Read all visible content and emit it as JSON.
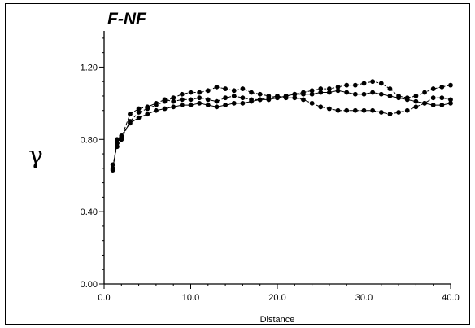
{
  "chart_data": {
    "type": "line",
    "title": "F-NF",
    "xlabel": "Distance",
    "ylabel": "γ",
    "xlim": [
      0,
      40
    ],
    "ylim": [
      0,
      1.4
    ],
    "x_ticks": [
      "0.0",
      "10.0",
      "20.0",
      "30.0",
      "40.0"
    ],
    "y_ticks": [
      "0.00",
      "0.40",
      "0.80",
      "1.20"
    ],
    "grid": false,
    "series": [
      {
        "x": [
          1,
          1.5,
          2,
          3,
          4,
          5,
          6,
          7,
          8,
          9,
          10,
          11,
          12,
          13,
          14,
          15,
          16,
          17,
          18,
          19,
          20,
          21,
          22,
          23,
          24,
          25,
          26,
          27,
          28,
          29,
          30,
          31,
          32,
          33,
          34,
          35,
          36,
          37,
          38,
          39,
          40
        ],
        "y": [
          0.63,
          0.8,
          0.82,
          0.89,
          0.92,
          0.94,
          0.96,
          0.97,
          0.98,
          0.99,
          0.99,
          1.0,
          0.99,
          0.98,
          0.99,
          1.0,
          1.0,
          1.01,
          1.02,
          1.02,
          1.03,
          1.04,
          1.05,
          1.05,
          1.05,
          1.06,
          1.06,
          1.07,
          1.06,
          1.05,
          1.05,
          1.06,
          1.05,
          1.04,
          1.03,
          1.02,
          1.01,
          1.0,
          0.99,
          0.99,
          1.0
        ]
      },
      {
        "x": [
          1,
          1.5,
          2,
          3,
          4,
          5,
          6,
          7,
          8,
          9,
          10,
          11,
          12,
          13,
          14,
          15,
          16,
          17,
          18,
          19,
          20,
          21,
          22,
          23,
          24,
          25,
          26,
          27,
          28,
          29,
          30,
          31,
          32,
          33,
          34,
          35,
          36,
          37,
          38,
          39,
          40
        ],
        "y": [
          0.66,
          0.76,
          0.8,
          0.9,
          0.95,
          0.97,
          0.99,
          1.01,
          1.03,
          1.05,
          1.06,
          1.06,
          1.07,
          1.09,
          1.08,
          1.07,
          1.08,
          1.06,
          1.05,
          1.04,
          1.03,
          1.04,
          1.05,
          1.06,
          1.07,
          1.08,
          1.08,
          1.09,
          1.1,
          1.1,
          1.11,
          1.12,
          1.11,
          1.08,
          1.04,
          1.03,
          1.04,
          1.06,
          1.08,
          1.09,
          1.1
        ]
      },
      {
        "x": [
          1,
          1.5,
          2,
          3,
          4,
          5,
          6,
          7,
          8,
          9,
          10,
          11,
          12,
          13,
          14,
          15,
          16,
          17,
          18,
          19,
          20,
          21,
          22,
          23,
          24,
          25,
          26,
          27,
          28,
          29,
          30,
          31,
          32,
          33,
          34,
          35,
          36,
          37,
          38,
          39,
          40
        ],
        "y": [
          0.64,
          0.78,
          0.81,
          0.94,
          0.97,
          0.98,
          1.0,
          1.02,
          1.01,
          1.02,
          1.02,
          1.03,
          1.02,
          1.01,
          1.03,
          1.04,
          1.03,
          1.02,
          1.02,
          1.03,
          1.04,
          1.03,
          1.03,
          1.02,
          1.0,
          0.98,
          0.97,
          0.96,
          0.96,
          0.96,
          0.96,
          0.96,
          0.95,
          0.94,
          0.95,
          0.96,
          0.98,
          1.0,
          1.03,
          1.03,
          1.02
        ]
      }
    ]
  }
}
